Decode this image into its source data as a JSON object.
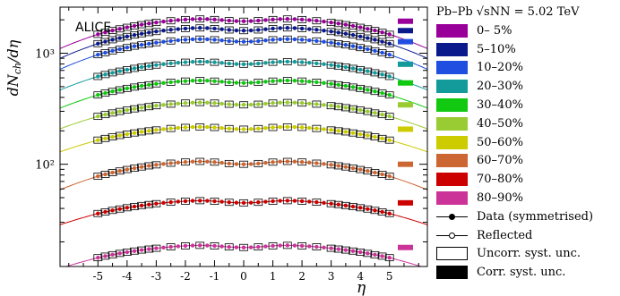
{
  "chart_data": {
    "type": "scatter",
    "experiment_label": "ALICE",
    "ylabel": "dN_ch/dη",
    "xlabel": "η",
    "x_ticks": [
      -5,
      -4,
      -3,
      -2,
      -1,
      0,
      1,
      2,
      3,
      4,
      5
    ],
    "y_scale": "log",
    "y_tick_labels": [
      {
        "value": 100,
        "label": "10²"
      },
      {
        "value": 1000,
        "label": "10³"
      }
    ],
    "xlim": [
      -6.3,
      6.3
    ],
    "ylim": [
      12,
      2600
    ],
    "legend_header": "Pb–Pb √sNN = 5.02 TeV",
    "legend_placement": "right",
    "eta_measured_max": 5.0,
    "series": [
      {
        "name": "0– 5%",
        "color": "#990099",
        "y0": 1942,
        "peak": 2035,
        "edge": 1480
      },
      {
        "name": "5–10%",
        "color": "#0a1a8c",
        "y0": 1598,
        "peak": 1690,
        "edge": 1220
      },
      {
        "name": "10–20%",
        "color": "#1f4ee0",
        "y0": 1270,
        "peak": 1340,
        "edge": 970
      },
      {
        "name": "20–30%",
        "color": "#139b9b",
        "y0": 796,
        "peak": 840,
        "edge": 618
      },
      {
        "name": "30–40%",
        "color": "#11c911",
        "y0": 540,
        "peak": 568,
        "edge": 421
      },
      {
        "name": "40–50%",
        "color": "#99cc33",
        "y0": 343,
        "peak": 360,
        "edge": 270
      },
      {
        "name": "50–60%",
        "color": "#cccc00",
        "y0": 207,
        "peak": 217,
        "edge": 165
      },
      {
        "name": "60–70%",
        "color": "#cc6633",
        "y0": 100,
        "peak": 106,
        "edge": 78
      },
      {
        "name": "70–80%",
        "color": "#cc0000",
        "y0": 44.9,
        "peak": 47,
        "edge": 36
      },
      {
        "name": "80–90%",
        "color": "#cc3399",
        "y0": 17.8,
        "peak": 18.6,
        "edge": 14.4
      }
    ],
    "legend_extra": [
      {
        "label": "Data (symmetrised)",
        "symbol": "filled-marker-line"
      },
      {
        "label": "Reflected",
        "symbol": "open-marker-line"
      },
      {
        "label": "Uncorr. syst. unc.",
        "symbol": "open-box"
      },
      {
        "label": "Corr. syst. unc.",
        "symbol": "filled-box"
      }
    ]
  }
}
